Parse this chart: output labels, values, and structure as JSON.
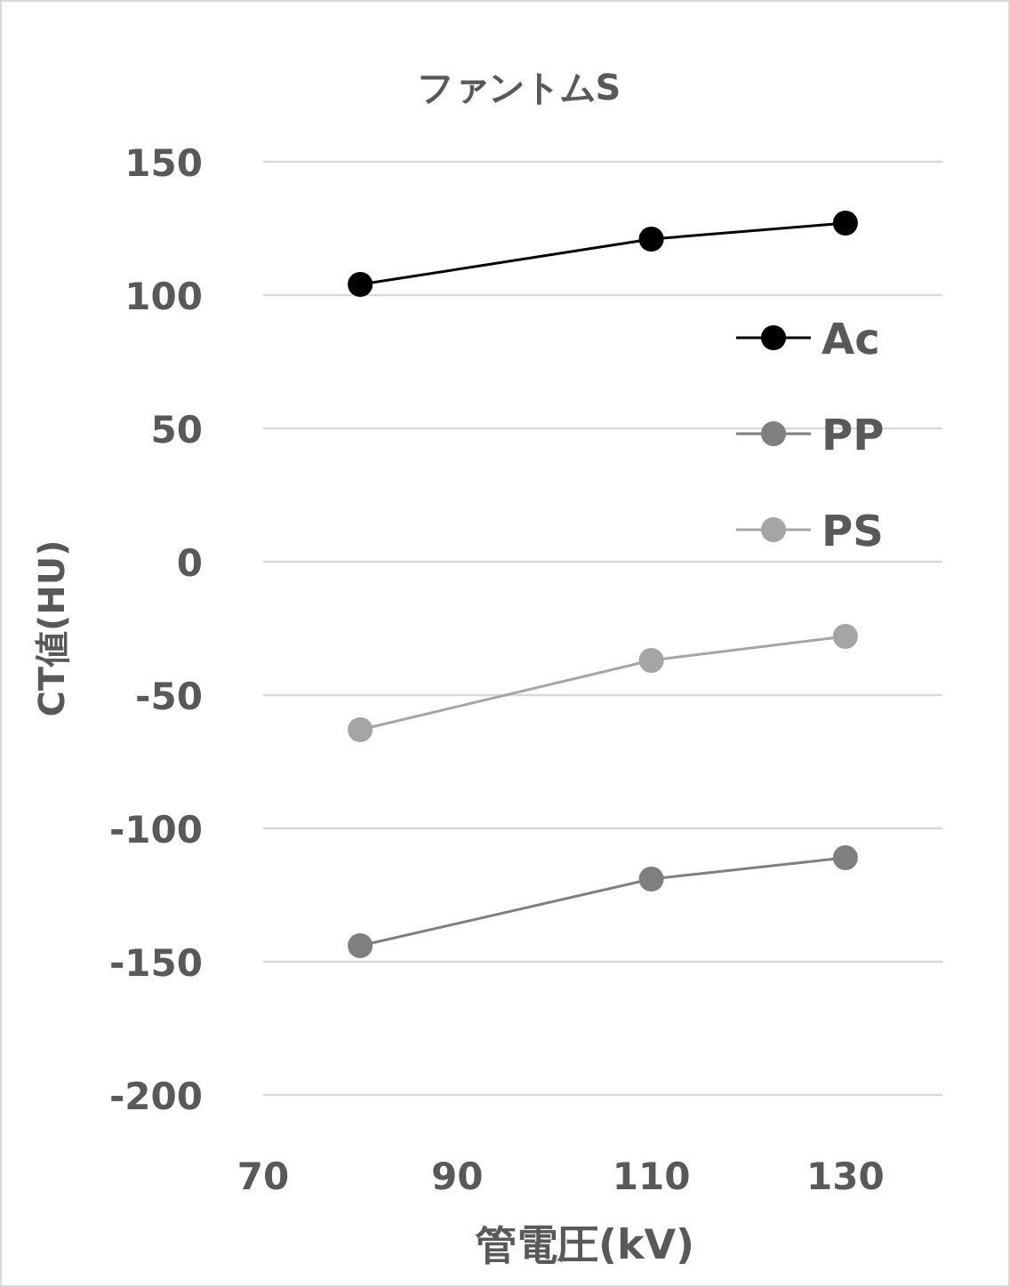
{
  "chart_data": {
    "type": "line",
    "title": "ファントムS",
    "xlabel": "管電圧(kV)",
    "ylabel": "CT値(HU)",
    "x": [
      80,
      110,
      130
    ],
    "series": [
      {
        "name": "Ac",
        "color": "#000000",
        "values": [
          104,
          121,
          127
        ]
      },
      {
        "name": "PP",
        "color": "#7f7f7f",
        "values": [
          -144,
          -119,
          -111
        ]
      },
      {
        "name": "PS",
        "color": "#a5a5a5",
        "values": [
          -63,
          -37,
          -28
        ]
      }
    ],
    "xlim": [
      70,
      140
    ],
    "xticks": [
      70,
      90,
      110,
      130
    ],
    "ylim": [
      -200,
      150
    ],
    "yticks": [
      150,
      100,
      50,
      0,
      -50,
      -100,
      -150,
      -200
    ],
    "grid": "y",
    "legend": "right",
    "marker": "circle",
    "line_style": "solid"
  }
}
